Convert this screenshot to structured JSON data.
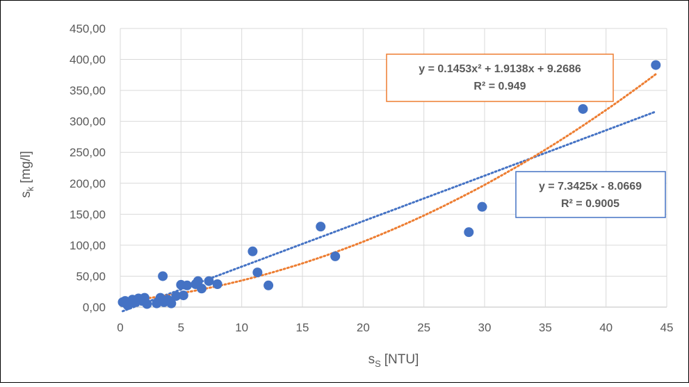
{
  "chart_data": {
    "type": "scatter",
    "title": "",
    "xlabel": {
      "main": "s",
      "sub": "S",
      "unit": "[NTU]"
    },
    "ylabel": {
      "main": "s",
      "sub": "k",
      "unit": "[mg/l]"
    },
    "xlim": [
      0,
      45
    ],
    "ylim": [
      0,
      450
    ],
    "x_ticks": [
      "0",
      "5",
      "10",
      "15",
      "20",
      "25",
      "30",
      "35",
      "40",
      "45"
    ],
    "y_ticks": [
      "0,00",
      "50,00",
      "100,00",
      "150,00",
      "200,00",
      "250,00",
      "300,00",
      "350,00",
      "400,00",
      "450,00"
    ],
    "grid": "horizontal",
    "legend": "none",
    "series": [
      {
        "marker_color": "#4472C4",
        "points": [
          [
            0.2,
            8
          ],
          [
            0.4,
            10
          ],
          [
            0.6,
            3
          ],
          [
            0.8,
            6
          ],
          [
            1.0,
            12
          ],
          [
            1.2,
            8
          ],
          [
            1.5,
            14
          ],
          [
            1.8,
            10
          ],
          [
            2.0,
            15
          ],
          [
            2.2,
            5
          ],
          [
            3.0,
            6
          ],
          [
            3.3,
            15
          ],
          [
            3.5,
            50
          ],
          [
            3.6,
            8
          ],
          [
            3.9,
            12
          ],
          [
            4.2,
            6
          ],
          [
            4.6,
            18
          ],
          [
            5.0,
            36
          ],
          [
            5.2,
            19
          ],
          [
            5.5,
            35
          ],
          [
            6.2,
            37
          ],
          [
            6.4,
            42
          ],
          [
            6.7,
            30
          ],
          [
            7.3,
            42
          ],
          [
            8.0,
            37
          ],
          [
            10.9,
            90
          ],
          [
            11.3,
            56
          ],
          [
            12.2,
            35
          ],
          [
            16.5,
            130
          ],
          [
            17.7,
            82
          ],
          [
            28.7,
            121
          ],
          [
            29.8,
            162
          ],
          [
            38.1,
            320
          ],
          [
            44.1,
            391
          ]
        ]
      }
    ],
    "trendlines": [
      {
        "type": "linear",
        "color": "#4472C4",
        "coefficients": {
          "slope": 7.3425,
          "intercept": -8.0669
        },
        "x_range": [
          0.2,
          44.1
        ],
        "equation": "y = 7.3425x - 8.0669",
        "r2": "R² = 0.9005",
        "box_color": "#4472C4"
      },
      {
        "type": "polynomial",
        "color": "#ED7D31",
        "coefficients": {
          "a": 0.1453,
          "b": 1.9138,
          "c": 9.2686
        },
        "x_range": [
          0.2,
          44.1
        ],
        "equation": "y = 0.1453x² + 1.9138x + 9.2686",
        "r2": "R² = 0.949",
        "box_color": "#ED7D31"
      }
    ],
    "colors": {
      "axis": "#BFBFBF",
      "grid": "#D9D9D9",
      "text": "#595959"
    }
  }
}
